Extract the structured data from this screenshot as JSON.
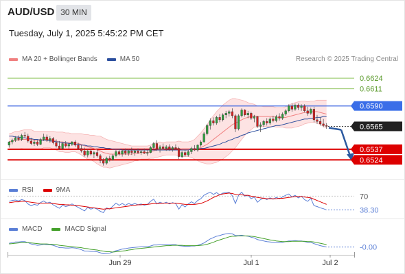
{
  "header": {
    "symbol": "AUD/USD",
    "timeframe": "30 MIN",
    "timestamp": "Tuesday, July 1, 2025 5:45:22 PM CET"
  },
  "legend": {
    "main": [
      {
        "label": "MA 20 + Bollinger Bands",
        "color": "#f08080"
      },
      {
        "label": "MA 50",
        "color": "#2c4f9e"
      }
    ],
    "rsi": [
      {
        "label": "RSI",
        "color": "#5b7fd6"
      },
      {
        "label": "9MA",
        "color": "#dd0000"
      }
    ],
    "macd": [
      {
        "label": "MACD",
        "color": "#5b7fd6"
      },
      {
        "label": "MACD Signal",
        "color": "#44a02a"
      }
    ]
  },
  "credit": "Research © 2025 Trading Central",
  "chart_data": {
    "type": "candlestick",
    "instrument": "AUD/USD",
    "timeframe": "30 MIN",
    "x_tick_labels": [
      "Jun 29",
      "Jul 1",
      "Jul 2"
    ],
    "price_ylim": [
      0.65,
      0.664
    ],
    "levels": [
      {
        "value": 0.6624,
        "label": "0.6624",
        "color": "#8dc35a",
        "kind": "target"
      },
      {
        "value": 0.6611,
        "label": "0.6611",
        "color": "#8dc35a",
        "kind": "target"
      },
      {
        "value": 0.659,
        "label": "0.6590",
        "color": "#4169e1",
        "kind": "resistance"
      },
      {
        "value": 0.6565,
        "label": "0.6565",
        "color": "#222222",
        "kind": "last"
      },
      {
        "value": 0.6537,
        "label": "0.6537",
        "color": "#dd0000",
        "kind": "support"
      },
      {
        "value": 0.6524,
        "label": "0.6524",
        "color": "#dd0000",
        "kind": "support"
      }
    ],
    "forecast": {
      "from": 0.6565,
      "to": 0.6524
    },
    "rsi": {
      "level_label": "70",
      "level": 70,
      "value_label": "38.30",
      "ylim": [
        20,
        80
      ]
    },
    "macd": {
      "value_label": "-0.00"
    },
    "candles": [
      [
        0.6542,
        0.6547,
        0.6539,
        0.6546
      ],
      [
        0.6546,
        0.655,
        0.6543,
        0.6548
      ],
      [
        0.6548,
        0.6553,
        0.6546,
        0.6551
      ],
      [
        0.6551,
        0.6554,
        0.6547,
        0.6549
      ],
      [
        0.6549,
        0.6556,
        0.6547,
        0.6554
      ],
      [
        0.6554,
        0.6558,
        0.6551,
        0.6553
      ],
      [
        0.6553,
        0.6556,
        0.6545,
        0.6547
      ],
      [
        0.6547,
        0.6551,
        0.6542,
        0.6544
      ],
      [
        0.6544,
        0.6549,
        0.6541,
        0.6546
      ],
      [
        0.6546,
        0.6548,
        0.6541,
        0.6543
      ],
      [
        0.6543,
        0.6551,
        0.6542,
        0.6549
      ],
      [
        0.6549,
        0.6556,
        0.6547,
        0.6552
      ],
      [
        0.6552,
        0.6555,
        0.6546,
        0.6548
      ],
      [
        0.6548,
        0.6553,
        0.6545,
        0.655
      ],
      [
        0.655,
        0.6552,
        0.6543,
        0.6545
      ],
      [
        0.6545,
        0.6549,
        0.6539,
        0.6541
      ],
      [
        0.6541,
        0.6547,
        0.6536,
        0.6538
      ],
      [
        0.6538,
        0.6546,
        0.6536,
        0.6544
      ],
      [
        0.6544,
        0.6547,
        0.6539,
        0.6541
      ],
      [
        0.6541,
        0.6545,
        0.6537,
        0.6543
      ],
      [
        0.6543,
        0.6547,
        0.6541,
        0.6546
      ],
      [
        0.6546,
        0.6548,
        0.654,
        0.6542
      ],
      [
        0.6542,
        0.6545,
        0.6536,
        0.6538
      ],
      [
        0.6538,
        0.6542,
        0.6533,
        0.6535
      ],
      [
        0.6535,
        0.6539,
        0.6528,
        0.653
      ],
      [
        0.653,
        0.6537,
        0.6527,
        0.6535
      ],
      [
        0.6535,
        0.6538,
        0.6529,
        0.6531
      ],
      [
        0.6531,
        0.6535,
        0.6526,
        0.6533
      ],
      [
        0.6533,
        0.6537,
        0.6527,
        0.6529
      ],
      [
        0.6529,
        0.6531,
        0.652,
        0.6523
      ],
      [
        0.6523,
        0.6526,
        0.6517,
        0.652
      ],
      [
        0.652,
        0.6528,
        0.6518,
        0.6526
      ],
      [
        0.6526,
        0.6529,
        0.6522,
        0.6524
      ],
      [
        0.6524,
        0.6531,
        0.6523,
        0.6529
      ],
      [
        0.6529,
        0.6536,
        0.6527,
        0.6534
      ],
      [
        0.6534,
        0.6537,
        0.6529,
        0.6531
      ],
      [
        0.6531,
        0.6537,
        0.6528,
        0.6535
      ],
      [
        0.6535,
        0.6538,
        0.653,
        0.6532
      ],
      [
        0.6532,
        0.6537,
        0.6529,
        0.6535
      ],
      [
        0.6535,
        0.6539,
        0.653,
        0.6533
      ],
      [
        0.6533,
        0.6537,
        0.6529,
        0.6535
      ],
      [
        0.6535,
        0.6538,
        0.6531,
        0.6533
      ],
      [
        0.6533,
        0.6537,
        0.653,
        0.6534
      ],
      [
        0.6534,
        0.6538,
        0.6531,
        0.6532
      ],
      [
        0.6532,
        0.6536,
        0.6529,
        0.6533
      ],
      [
        0.6533,
        0.6541,
        0.6532,
        0.6539
      ],
      [
        0.6539,
        0.6546,
        0.6537,
        0.6544
      ],
      [
        0.6544,
        0.6548,
        0.6535,
        0.6537
      ],
      [
        0.6537,
        0.6542,
        0.6533,
        0.654
      ],
      [
        0.654,
        0.6544,
        0.6536,
        0.6538
      ],
      [
        0.6538,
        0.6542,
        0.6535,
        0.654
      ],
      [
        0.654,
        0.6543,
        0.6535,
        0.6537
      ],
      [
        0.6537,
        0.6541,
        0.6534,
        0.6539
      ],
      [
        0.6539,
        0.6543,
        0.6536,
        0.6538
      ],
      [
        0.6538,
        0.654,
        0.6525,
        0.6528
      ],
      [
        0.6528,
        0.6535,
        0.6526,
        0.6533
      ],
      [
        0.6533,
        0.6536,
        0.6528,
        0.653
      ],
      [
        0.653,
        0.6536,
        0.6528,
        0.6534
      ],
      [
        0.6534,
        0.654,
        0.6531,
        0.6538
      ],
      [
        0.6538,
        0.6542,
        0.6535,
        0.6536
      ],
      [
        0.6536,
        0.6543,
        0.6534,
        0.6542
      ],
      [
        0.6542,
        0.6548,
        0.654,
        0.6546
      ],
      [
        0.6546,
        0.6558,
        0.6545,
        0.6556
      ],
      [
        0.6556,
        0.6568,
        0.6554,
        0.6566
      ],
      [
        0.6566,
        0.6575,
        0.6561,
        0.6572
      ],
      [
        0.6572,
        0.6576,
        0.6566,
        0.6569
      ],
      [
        0.6569,
        0.6578,
        0.6567,
        0.6576
      ],
      [
        0.6576,
        0.658,
        0.657,
        0.6573
      ],
      [
        0.6573,
        0.6581,
        0.6571,
        0.6579
      ],
      [
        0.6579,
        0.6584,
        0.6575,
        0.6581
      ],
      [
        0.6581,
        0.6585,
        0.6577,
        0.6583
      ],
      [
        0.6583,
        0.6587,
        0.6575,
        0.6578
      ],
      [
        0.6578,
        0.658,
        0.6558,
        0.6562
      ],
      [
        0.6562,
        0.658,
        0.656,
        0.6578
      ],
      [
        0.6578,
        0.6587,
        0.6576,
        0.6585
      ],
      [
        0.6585,
        0.6586,
        0.6577,
        0.6579
      ],
      [
        0.6579,
        0.6584,
        0.6575,
        0.6581
      ],
      [
        0.6581,
        0.6583,
        0.6573,
        0.6575
      ],
      [
        0.6575,
        0.6579,
        0.657,
        0.6577
      ],
      [
        0.6577,
        0.6578,
        0.6563,
        0.6565
      ],
      [
        0.6565,
        0.657,
        0.6558,
        0.6567
      ],
      [
        0.6567,
        0.6573,
        0.6564,
        0.6571
      ],
      [
        0.6571,
        0.6575,
        0.6566,
        0.6569
      ],
      [
        0.6569,
        0.6576,
        0.6567,
        0.6574
      ],
      [
        0.6574,
        0.6578,
        0.657,
        0.6572
      ],
      [
        0.6572,
        0.6579,
        0.657,
        0.6577
      ],
      [
        0.6577,
        0.6581,
        0.6572,
        0.6575
      ],
      [
        0.6575,
        0.6582,
        0.6573,
        0.658
      ],
      [
        0.658,
        0.6586,
        0.6578,
        0.6584
      ],
      [
        0.6584,
        0.6592,
        0.6582,
        0.659
      ],
      [
        0.659,
        0.6593,
        0.6583,
        0.6586
      ],
      [
        0.6586,
        0.6593,
        0.6584,
        0.6591
      ],
      [
        0.6591,
        0.6593,
        0.6585,
        0.6588
      ],
      [
        0.6588,
        0.6592,
        0.6584,
        0.659
      ],
      [
        0.659,
        0.6592,
        0.6582,
        0.6584
      ],
      [
        0.6584,
        0.6589,
        0.6578,
        0.6581
      ],
      [
        0.6581,
        0.6588,
        0.6579,
        0.6586
      ],
      [
        0.6586,
        0.6589,
        0.657,
        0.6573
      ],
      [
        0.6573,
        0.6579,
        0.6568,
        0.6571
      ],
      [
        0.6571,
        0.6576,
        0.6566,
        0.6568
      ],
      [
        0.6568,
        0.6574,
        0.6564,
        0.6566
      ],
      [
        0.6566,
        0.6569,
        0.6562,
        0.6565
      ]
    ],
    "ma20": [
      0.6546,
      0.6547,
      0.6548,
      0.6548,
      0.6549,
      0.6549,
      0.6549,
      0.6549,
      0.6548,
      0.6548,
      0.6548,
      0.6549,
      0.6549,
      0.6549,
      0.6548,
      0.6547,
      0.6546,
      0.6546,
      0.6545,
      0.6545,
      0.6545,
      0.6545,
      0.6544,
      0.6543,
      0.6541,
      0.654,
      0.6539,
      0.6538,
      0.6536,
      0.6535,
      0.6533,
      0.6532,
      0.6531,
      0.6531,
      0.6531,
      0.6531,
      0.6531,
      0.6531,
      0.6531,
      0.6531,
      0.6532,
      0.6532,
      0.6533,
      0.6533,
      0.6533,
      0.6534,
      0.6535,
      0.6536,
      0.6537,
      0.6537,
      0.6538,
      0.6538,
      0.6538,
      0.6538,
      0.6538,
      0.6537,
      0.6537,
      0.6537,
      0.6537,
      0.6537,
      0.6538,
      0.6539,
      0.6541,
      0.6543,
      0.6546,
      0.6549,
      0.6552,
      0.6555,
      0.6558,
      0.6561,
      0.6564,
      0.6567,
      0.6569,
      0.6571,
      0.6573,
      0.6575,
      0.6576,
      0.6577,
      0.6578,
      0.6577,
      0.6577,
      0.6577,
      0.6577,
      0.6577,
      0.6577,
      0.6576,
      0.6576,
      0.6576,
      0.6576,
      0.6577,
      0.6578,
      0.6579,
      0.658,
      0.6581,
      0.6582,
      0.6582,
      0.6583,
      0.6583,
      0.6583,
      0.6582,
      0.6581,
      0.658
    ],
    "ma50": [
      0.6553,
      0.6553,
      0.6552,
      0.6552,
      0.6551,
      0.6551,
      0.655,
      0.655,
      0.6549,
      0.6549,
      0.6548,
      0.6548,
      0.6548,
      0.6547,
      0.6547,
      0.6546,
      0.6546,
      0.6545,
      0.6545,
      0.6544,
      0.6544,
      0.6543,
      0.6543,
      0.6542,
      0.6542,
      0.6541,
      0.6541,
      0.654,
      0.654,
      0.6539,
      0.6539,
      0.6538,
      0.6538,
      0.6537,
      0.6537,
      0.6537,
      0.6536,
      0.6536,
      0.6536,
      0.6536,
      0.6536,
      0.6536,
      0.6536,
      0.6536,
      0.6536,
      0.6536,
      0.6536,
      0.6536,
      0.6536,
      0.6536,
      0.6536,
      0.6536,
      0.6536,
      0.6536,
      0.6536,
      0.6536,
      0.6536,
      0.6536,
      0.6537,
      0.6537,
      0.6537,
      0.6538,
      0.6538,
      0.6539,
      0.654,
      0.6541,
      0.6542,
      0.6543,
      0.6545,
      0.6546,
      0.6548,
      0.6549,
      0.6551,
      0.6552,
      0.6554,
      0.6555,
      0.6557,
      0.6558,
      0.6559,
      0.656,
      0.6561,
      0.6562,
      0.6563,
      0.6564,
      0.6565,
      0.6566,
      0.6566,
      0.6567,
      0.6568,
      0.6569,
      0.657,
      0.6571,
      0.6572,
      0.6573,
      0.6574,
      0.6574,
      0.6575,
      0.6575,
      0.6576,
      0.6576,
      0.6577,
      0.6577
    ],
    "bb_width": [
      0.001,
      0.001,
      0.0011,
      0.0011,
      0.0011,
      0.0012,
      0.0012,
      0.0012,
      0.0011,
      0.0011,
      0.0011,
      0.001,
      0.001,
      0.001,
      0.0011,
      0.0011,
      0.0012,
      0.0012,
      0.0012,
      0.0012,
      0.0011,
      0.0011,
      0.0012,
      0.0013,
      0.0014,
      0.0015,
      0.0015,
      0.0016,
      0.0017,
      0.0018,
      0.0018,
      0.0017,
      0.0017,
      0.0016,
      0.0015,
      0.0014,
      0.0013,
      0.0012,
      0.0011,
      0.001,
      0.0009,
      0.0009,
      0.0008,
      0.0008,
      0.0008,
      0.0008,
      0.0009,
      0.0009,
      0.0009,
      0.0008,
      0.0008,
      0.0008,
      0.0008,
      0.0008,
      0.0009,
      0.0009,
      0.0009,
      0.0009,
      0.001,
      0.0012,
      0.0015,
      0.0018,
      0.0021,
      0.0024,
      0.0027,
      0.0029,
      0.0031,
      0.0032,
      0.0033,
      0.0033,
      0.0033,
      0.0032,
      0.003,
      0.0027,
      0.0024,
      0.0021,
      0.0018,
      0.0016,
      0.0014,
      0.0013,
      0.0013,
      0.0012,
      0.0012,
      0.0012,
      0.0012,
      0.0012,
      0.0012,
      0.0012,
      0.0013,
      0.0014,
      0.0015,
      0.0015,
      0.0015,
      0.0015,
      0.0014,
      0.0013,
      0.0013,
      0.0013,
      0.0014,
      0.0015,
      0.0016,
      0.0017
    ],
    "rsi_values": [
      58,
      60,
      61,
      59,
      62,
      60,
      52,
      48,
      51,
      49,
      55,
      59,
      54,
      56,
      50,
      46,
      42,
      49,
      46,
      48,
      52,
      48,
      44,
      40,
      36,
      44,
      40,
      43,
      40,
      35,
      32,
      43,
      40,
      47,
      54,
      49,
      53,
      49,
      53,
      50,
      53,
      50,
      52,
      49,
      51,
      58,
      63,
      52,
      56,
      53,
      56,
      52,
      55,
      53,
      40,
      50,
      45,
      52,
      57,
      53,
      60,
      64,
      72,
      76,
      79,
      74,
      78,
      73,
      77,
      78,
      79,
      71,
      53,
      72,
      79,
      70,
      72,
      64,
      68,
      56,
      62,
      66,
      62,
      66,
      63,
      67,
      64,
      68,
      72,
      75,
      68,
      72,
      66,
      70,
      62,
      58,
      65,
      48,
      46,
      43,
      41,
      38.3
    ],
    "rsi_ma9": [
      55,
      56,
      57,
      57,
      58,
      58,
      57,
      56,
      55,
      54,
      54,
      54,
      54,
      54,
      53,
      52,
      51,
      51,
      50,
      50,
      49,
      49,
      48,
      47,
      46,
      45,
      44,
      43,
      42,
      41,
      40,
      41,
      41,
      42,
      43,
      44,
      45,
      46,
      47,
      48,
      49,
      50,
      50,
      51,
      51,
      52,
      53,
      53,
      53,
      54,
      54,
      54,
      54,
      54,
      53,
      52,
      51,
      51,
      51,
      51,
      52,
      53,
      56,
      59,
      63,
      67,
      70,
      73,
      75,
      76,
      77,
      76,
      74,
      73,
      73,
      72,
      72,
      70,
      69,
      67,
      66,
      65,
      64,
      64,
      64,
      64,
      65,
      65,
      66,
      67,
      68,
      69,
      69,
      69,
      68,
      67,
      66,
      63,
      60,
      57,
      54,
      51
    ],
    "macd_values": [
      0.0001,
      0.00012,
      0.00014,
      0.00014,
      0.00015,
      0.00015,
      0.00012,
      8e-05,
      6e-05,
      4e-05,
      5e-05,
      7e-05,
      6e-05,
      6e-05,
      4e-05,
      1e-05,
      -3e-05,
      -3e-05,
      -4e-05,
      -4e-05,
      -3e-05,
      -4e-05,
      -6e-05,
      -9e-05,
      -0.00013,
      -0.00013,
      -0.00014,
      -0.00014,
      -0.00015,
      -0.00018,
      -0.00021,
      -0.0002,
      -0.00019,
      -0.00016,
      -0.00012,
      -0.0001,
      -7e-05,
      -6e-05,
      -4e-05,
      -3e-05,
      -2e-05,
      -1e-05,
      0.0,
      0.0,
      0.0,
      2e-05,
      5e-05,
      5e-05,
      6e-05,
      6e-05,
      6e-05,
      6e-05,
      6e-05,
      6e-05,
      3e-05,
      2e-05,
      1e-05,
      1e-05,
      2e-05,
      2e-05,
      4e-05,
      7e-05,
      0.00011,
      0.00017,
      0.00023,
      0.00027,
      0.00031,
      0.00033,
      0.00036,
      0.00038,
      0.00039,
      0.00038,
      0.00033,
      0.00033,
      0.00034,
      0.00032,
      0.00031,
      0.00028,
      0.00026,
      0.00021,
      0.00019,
      0.00017,
      0.00015,
      0.00014,
      0.00013,
      0.00013,
      0.00012,
      0.00013,
      0.00015,
      0.00017,
      0.00017,
      0.00018,
      0.00017,
      0.00017,
      0.00015,
      0.00013,
      0.00013,
      9e-05,
      6e-05,
      3e-05,
      1e-05,
      -1e-05
    ],
    "macd_signal": [
      8e-05,
      9e-05,
      0.0001,
      0.00011,
      0.00012,
      0.00012,
      0.00012,
      0.00011,
      0.0001,
      9e-05,
      8e-05,
      8e-05,
      8e-05,
      7e-05,
      7e-05,
      6e-05,
      4e-05,
      3e-05,
      2e-05,
      1e-05,
      0.0,
      -1e-05,
      -2e-05,
      -3e-05,
      -5e-05,
      -6e-05,
      -8e-05,
      -9e-05,
      -0.0001,
      -0.00012,
      -0.00013,
      -0.00015,
      -0.00015,
      -0.00016,
      -0.00015,
      -0.00014,
      -0.00013,
      -0.00012,
      -0.0001,
      -9e-05,
      -7e-05,
      -6e-05,
      -5e-05,
      -4e-05,
      -3e-05,
      -2e-05,
      -1e-05,
      0.0,
      1e-05,
      2e-05,
      3e-05,
      3e-05,
      4e-05,
      4e-05,
      4e-05,
      4e-05,
      3e-05,
      3e-05,
      3e-05,
      3e-05,
      3e-05,
      4e-05,
      5e-05,
      7e-05,
      0.0001,
      0.00013,
      0.00017,
      0.0002,
      0.00023,
      0.00026,
      0.00029,
      0.00031,
      0.00031,
      0.00032,
      0.00032,
      0.00032,
      0.00032,
      0.00031,
      0.0003,
      0.00028,
      0.00026,
      0.00024,
      0.00022,
      0.0002,
      0.00019,
      0.00017,
      0.00016,
      0.00015,
      0.00015,
      0.00015,
      0.00016,
      0.00016,
      0.00016,
      0.00016,
      0.00016,
      0.00015,
      0.00015,
      0.00014,
      0.00012,
      0.0001,
      8e-05,
      6e-05
    ]
  }
}
